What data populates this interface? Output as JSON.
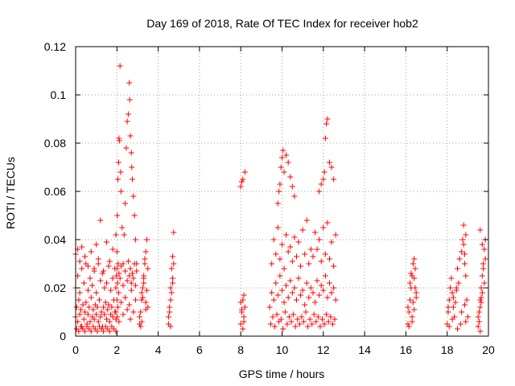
{
  "chart_data": {
    "type": "scatter",
    "title": "Day 169 of 2018, Rate Of TEC Index for receiver hob2",
    "xlabel": "GPS time / hours",
    "ylabel": "ROTI / TECUs",
    "xlim": [
      0,
      20
    ],
    "ylim": [
      0,
      0.12
    ],
    "xticks": [
      "0",
      "2",
      "4",
      "6",
      "8",
      "10",
      "12",
      "14",
      "16",
      "18",
      "20"
    ],
    "yticks": [
      "0",
      "0.02",
      "0.04",
      "0.06",
      "0.08",
      "0.1",
      "0.12"
    ],
    "grid": true,
    "marker": "+",
    "color": "#ff0000",
    "series": [
      {
        "name": "ROTI",
        "x": [
          0.0,
          0.05,
          0.1,
          0.15,
          0.2,
          0.25,
          0.3,
          0.35,
          0.4,
          0.45,
          0.5,
          0.55,
          0.6,
          0.65,
          0.7,
          0.75,
          0.8,
          0.85,
          0.9,
          0.95,
          1.0,
          1.05,
          1.1,
          1.15,
          1.2,
          1.25,
          1.3,
          1.35,
          1.4,
          1.45,
          1.5,
          1.55,
          1.6,
          1.65,
          1.7,
          1.75,
          1.8,
          1.85,
          1.9,
          1.95,
          0.0,
          0.1,
          0.2,
          0.3,
          0.4,
          0.5,
          0.6,
          0.7,
          0.8,
          0.9,
          1.0,
          1.1,
          1.2,
          1.3,
          1.4,
          1.5,
          1.6,
          1.7,
          1.8,
          1.9,
          0.05,
          0.15,
          0.25,
          0.35,
          0.45,
          0.55,
          0.65,
          0.75,
          0.85,
          0.95,
          1.05,
          1.15,
          1.25,
          1.35,
          1.45,
          1.55,
          1.65,
          1.75,
          1.85,
          1.95,
          0.0,
          0.1,
          0.2,
          0.3,
          0.45,
          0.6,
          0.75,
          0.9,
          1.0,
          1.1,
          1.2,
          1.35,
          1.5,
          1.65,
          1.8,
          1.95,
          1.95,
          2.0,
          2.02,
          2.05,
          2.08,
          2.1,
          2.12,
          2.15,
          2.18,
          2.2,
          2.25,
          2.3,
          2.35,
          2.4,
          2.45,
          2.5,
          2.55,
          2.6,
          2.62,
          2.65,
          2.7,
          2.72,
          2.75,
          2.8,
          2.85,
          2.9,
          2.95,
          1.95,
          2.0,
          2.02,
          2.05,
          2.08,
          2.1,
          2.2,
          2.3,
          2.4,
          2.5,
          2.6,
          2.65,
          2.7,
          2.8,
          2.9,
          1.98,
          2.0,
          2.03,
          2.06,
          2.1,
          2.15,
          2.2,
          2.3,
          2.4,
          2.5,
          2.55,
          2.6,
          2.65,
          2.7,
          2.75,
          2.8,
          2.85,
          2.9,
          2.95,
          3.1,
          3.15,
          3.2,
          3.25,
          3.3,
          3.35,
          3.4,
          3.45,
          3.5,
          3.1,
          3.2,
          3.3,
          3.4,
          3.5,
          3.15,
          3.25,
          3.35,
          3.45,
          3.2,
          3.3,
          3.4,
          4.5,
          4.55,
          4.6,
          4.65,
          4.7,
          4.75,
          4.5,
          4.6,
          4.7,
          4.55,
          4.65,
          4.75,
          4.6,
          4.7,
          8.0,
          8.05,
          8.1,
          8.15,
          8.2,
          8.0,
          8.1,
          8.2,
          8.05,
          8.15,
          8.0,
          8.1,
          8.05,
          8.15,
          9.4,
          9.5,
          9.6,
          9.7,
          9.8,
          9.9,
          10.0,
          10.1,
          10.2,
          10.3,
          10.4,
          10.5,
          10.6,
          10.7,
          10.8,
          10.9,
          11.0,
          11.1,
          11.2,
          11.3,
          11.4,
          11.5,
          11.6,
          11.7,
          11.8,
          11.9,
          12.0,
          12.1,
          12.2,
          12.3,
          12.4,
          12.5,
          12.6,
          9.45,
          9.55,
          9.65,
          9.75,
          9.85,
          9.95,
          10.05,
          10.15,
          10.25,
          10.35,
          10.45,
          10.55,
          10.65,
          10.75,
          10.85,
          10.95,
          11.05,
          11.15,
          11.25,
          11.35,
          11.45,
          11.55,
          11.65,
          11.75,
          11.85,
          11.95,
          12.05,
          12.15,
          12.25,
          12.35,
          12.45,
          12.55,
          9.5,
          9.7,
          9.9,
          10.1,
          10.3,
          10.5,
          10.7,
          10.9,
          11.1,
          11.3,
          11.5,
          11.7,
          11.9,
          12.1,
          12.3,
          12.5,
          9.6,
          9.8,
          10.0,
          10.2,
          10.4,
          10.6,
          10.8,
          11.0,
          11.2,
          11.4,
          11.6,
          11.8,
          12.0,
          12.2,
          12.4,
          12.6,
          9.8,
          9.85,
          9.9,
          9.95,
          10.0,
          10.05,
          10.1,
          10.2,
          10.3,
          10.4,
          10.5,
          10.6,
          11.8,
          11.9,
          12.0,
          12.05,
          12.1,
          12.15,
          12.2,
          12.3,
          12.4,
          12.5,
          16.1,
          16.15,
          16.2,
          16.25,
          16.3,
          16.35,
          16.4,
          16.45,
          16.5,
          16.1,
          16.2,
          16.3,
          16.4,
          16.5,
          16.15,
          16.25,
          16.35,
          16.45,
          16.3,
          16.4,
          18.0,
          18.05,
          18.1,
          18.15,
          18.2,
          18.25,
          18.3,
          18.35,
          18.4,
          18.45,
          18.5,
          18.55,
          18.6,
          18.7,
          18.75,
          18.8,
          18.85,
          18.9,
          18.95,
          19.0,
          18.1,
          18.3,
          18.5,
          18.7,
          18.9,
          18.05,
          18.25,
          18.45,
          18.65,
          18.85,
          18.8,
          18.85,
          18.9,
          19.5,
          19.55,
          19.6,
          19.65,
          19.7,
          19.75,
          19.8,
          19.85,
          19.5,
          19.6,
          19.7,
          19.8,
          19.55,
          19.65,
          19.75,
          19.85,
          19.6,
          19.7,
          19.6,
          19.65
        ],
        "y": [
          0.008,
          0.012,
          0.006,
          0.015,
          0.009,
          0.011,
          0.004,
          0.013,
          0.007,
          0.01,
          0.014,
          0.005,
          0.009,
          0.012,
          0.006,
          0.016,
          0.008,
          0.011,
          0.007,
          0.013,
          0.009,
          0.012,
          0.006,
          0.015,
          0.008,
          0.01,
          0.004,
          0.012,
          0.009,
          0.014,
          0.007,
          0.011,
          0.013,
          0.006,
          0.009,
          0.012,
          0.008,
          0.015,
          0.01,
          0.007,
          0.02,
          0.025,
          0.018,
          0.028,
          0.022,
          0.03,
          0.019,
          0.024,
          0.021,
          0.027,
          0.018,
          0.032,
          0.023,
          0.026,
          0.02,
          0.022,
          0.029,
          0.019,
          0.024,
          0.028,
          0.003,
          0.002,
          0.004,
          0.003,
          0.002,
          0.004,
          0.003,
          0.002,
          0.004,
          0.003,
          0.002,
          0.004,
          0.003,
          0.002,
          0.004,
          0.003,
          0.002,
          0.004,
          0.003,
          0.002,
          0.034,
          0.036,
          0.031,
          0.037,
          0.033,
          0.029,
          0.035,
          0.028,
          0.038,
          0.03,
          0.048,
          0.027,
          0.039,
          0.031,
          0.036,
          0.042,
          0.02,
          0.035,
          0.05,
          0.065,
          0.072,
          0.082,
          0.081,
          0.112,
          0.068,
          0.06,
          0.045,
          0.03,
          0.042,
          0.055,
          0.078,
          0.089,
          0.092,
          0.105,
          0.098,
          0.083,
          0.076,
          0.07,
          0.065,
          0.058,
          0.05,
          0.04,
          0.03,
          0.01,
          0.015,
          0.008,
          0.012,
          0.018,
          0.006,
          0.014,
          0.009,
          0.016,
          0.011,
          0.013,
          0.007,
          0.019,
          0.01,
          0.015,
          0.025,
          0.028,
          0.022,
          0.03,
          0.026,
          0.024,
          0.029,
          0.021,
          0.027,
          0.023,
          0.031,
          0.025,
          0.028,
          0.022,
          0.026,
          0.024,
          0.03,
          0.021,
          0.027,
          0.005,
          0.01,
          0.015,
          0.02,
          0.025,
          0.03,
          0.035,
          0.04,
          0.012,
          0.008,
          0.018,
          0.022,
          0.014,
          0.028,
          0.004,
          0.016,
          0.032,
          0.019,
          0.006,
          0.024,
          0.011,
          0.005,
          0.012,
          0.02,
          0.028,
          0.033,
          0.043,
          0.008,
          0.015,
          0.024,
          0.01,
          0.018,
          0.03,
          0.004,
          0.022,
          0.005,
          0.01,
          0.015,
          0.017,
          0.012,
          0.062,
          0.065,
          0.068,
          0.064,
          0.008,
          0.014,
          0.003,
          0.011,
          0.006,
          0.012,
          0.018,
          0.015,
          0.022,
          0.017,
          0.025,
          0.019,
          0.014,
          0.021,
          0.016,
          0.023,
          0.018,
          0.02,
          0.015,
          0.024,
          0.017,
          0.019,
          0.013,
          0.022,
          0.016,
          0.02,
          0.018,
          0.014,
          0.023,
          0.017,
          0.021,
          0.019,
          0.025,
          0.016,
          0.022,
          0.018,
          0.02,
          0.015,
          0.005,
          0.008,
          0.004,
          0.009,
          0.006,
          0.007,
          0.003,
          0.01,
          0.005,
          0.008,
          0.006,
          0.009,
          0.004,
          0.007,
          0.005,
          0.008,
          0.006,
          0.01,
          0.004,
          0.007,
          0.005,
          0.009,
          0.006,
          0.008,
          0.004,
          0.007,
          0.005,
          0.009,
          0.006,
          0.008,
          0.005,
          0.007,
          0.03,
          0.034,
          0.032,
          0.028,
          0.035,
          0.031,
          0.033,
          0.029,
          0.034,
          0.03,
          0.033,
          0.036,
          0.031,
          0.034,
          0.032,
          0.029,
          0.04,
          0.045,
          0.038,
          0.042,
          0.037,
          0.041,
          0.039,
          0.044,
          0.048,
          0.036,
          0.043,
          0.04,
          0.045,
          0.047,
          0.039,
          0.042,
          0.055,
          0.06,
          0.063,
          0.07,
          0.074,
          0.077,
          0.068,
          0.075,
          0.072,
          0.066,
          0.062,
          0.058,
          0.06,
          0.063,
          0.065,
          0.068,
          0.082,
          0.088,
          0.09,
          0.072,
          0.07,
          0.065,
          0.005,
          0.01,
          0.015,
          0.02,
          0.025,
          0.03,
          0.032,
          0.028,
          0.018,
          0.012,
          0.022,
          0.008,
          0.024,
          0.016,
          0.004,
          0.026,
          0.014,
          0.02,
          0.006,
          0.011,
          0.005,
          0.01,
          0.015,
          0.02,
          0.024,
          0.018,
          0.012,
          0.008,
          0.014,
          0.02,
          0.028,
          0.022,
          0.032,
          0.035,
          0.04,
          0.046,
          0.03,
          0.025,
          0.015,
          0.008,
          0.004,
          0.016,
          0.003,
          0.01,
          0.006,
          0.012,
          0.007,
          0.019,
          0.005,
          0.013,
          0.038,
          0.034,
          0.042,
          0.004,
          0.01,
          0.015,
          0.02,
          0.025,
          0.03,
          0.036,
          0.04,
          0.008,
          0.012,
          0.018,
          0.022,
          0.006,
          0.016,
          0.028,
          0.032,
          0.044,
          0.038,
          0.002,
          0.014
        ]
      }
    ]
  }
}
